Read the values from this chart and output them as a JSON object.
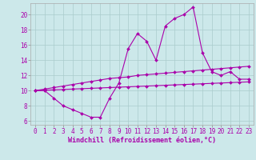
{
  "xlabel": "Windchill (Refroidissement éolien,°C)",
  "bg_color": "#cce8ea",
  "line_color": "#aa00aa",
  "x_ticks": [
    0,
    1,
    2,
    3,
    4,
    5,
    6,
    7,
    8,
    9,
    10,
    11,
    12,
    13,
    14,
    15,
    16,
    17,
    18,
    19,
    20,
    21,
    22,
    23
  ],
  "y_ticks": [
    6,
    8,
    10,
    12,
    14,
    16,
    18,
    20
  ],
  "xlim": [
    -0.5,
    23.5
  ],
  "ylim": [
    5.5,
    21.5
  ],
  "series": {
    "main": [
      10.0,
      10.0,
      9.0,
      8.0,
      7.5,
      7.0,
      6.5,
      6.5,
      9.0,
      11.0,
      15.5,
      17.5,
      16.5,
      14.0,
      18.5,
      19.5,
      20.0,
      21.0,
      15.0,
      12.5,
      12.0,
      12.5,
      11.5,
      11.5
    ],
    "upper": [
      10.0,
      10.2,
      10.4,
      10.6,
      10.8,
      11.0,
      11.2,
      11.4,
      11.6,
      11.7,
      11.8,
      12.0,
      12.1,
      12.2,
      12.3,
      12.4,
      12.5,
      12.6,
      12.7,
      12.8,
      12.9,
      13.0,
      13.1,
      13.2
    ],
    "lower": [
      10.0,
      10.05,
      10.1,
      10.15,
      10.2,
      10.25,
      10.3,
      10.35,
      10.4,
      10.45,
      10.5,
      10.55,
      10.6,
      10.65,
      10.7,
      10.75,
      10.8,
      10.85,
      10.9,
      10.95,
      11.0,
      11.05,
      11.1,
      11.15
    ]
  },
  "grid_color": "#aacccc",
  "tick_fontsize": 5.5,
  "label_fontsize": 6.0
}
